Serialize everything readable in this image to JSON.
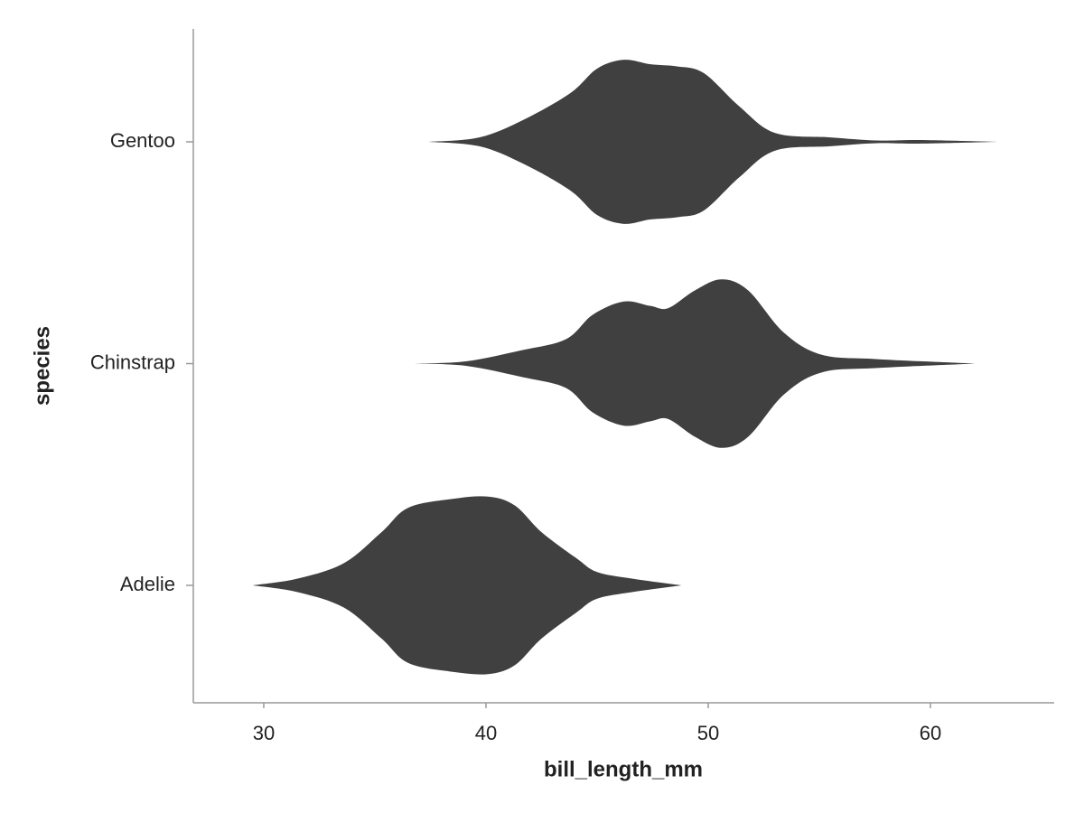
{
  "chart_data": {
    "type": "violin",
    "orientation": "horizontal",
    "x_label": "bill_length_mm",
    "y_label": "species",
    "categories": [
      "Adelie",
      "Chinstrap",
      "Gentoo"
    ],
    "color": "#404040",
    "xlim": [
      26.83,
      65.57
    ],
    "xticks": [
      30,
      40,
      50,
      60
    ],
    "series": [
      {
        "name": "Adelie",
        "x": [
          29.5,
          31.5,
          33.6,
          35.3,
          36.5,
          38.5,
          40.1,
          41.3,
          42.5,
          44.1,
          45,
          46.6,
          48.8
        ],
        "widths": [
          0,
          0.03,
          0.1,
          0.24,
          0.35,
          0.39,
          0.4,
          0.36,
          0.24,
          0.12,
          0.06,
          0.03,
          0
        ]
      },
      {
        "name": "Chinstrap",
        "x": [
          36.8,
          39.1,
          41.6,
          43.6,
          44.8,
          46.2,
          47.4,
          48.2,
          49.4,
          50.6,
          51.8,
          53.4,
          55.1,
          57.6,
          62.0
        ],
        "widths": [
          0,
          0.01,
          0.06,
          0.11,
          0.22,
          0.28,
          0.26,
          0.25,
          0.33,
          0.38,
          0.33,
          0.14,
          0.04,
          0.02,
          0
        ]
      },
      {
        "name": "Gentoo",
        "x": [
          37.4,
          39.7,
          41.7,
          43.8,
          45,
          46.2,
          47.4,
          48.6,
          49.8,
          51.4,
          53,
          55.5,
          57.6,
          59.5,
          63.0
        ],
        "widths": [
          0,
          0.02,
          0.1,
          0.22,
          0.33,
          0.37,
          0.35,
          0.34,
          0.31,
          0.16,
          0.04,
          0.02,
          0.006,
          0.008,
          0
        ]
      }
    ]
  }
}
